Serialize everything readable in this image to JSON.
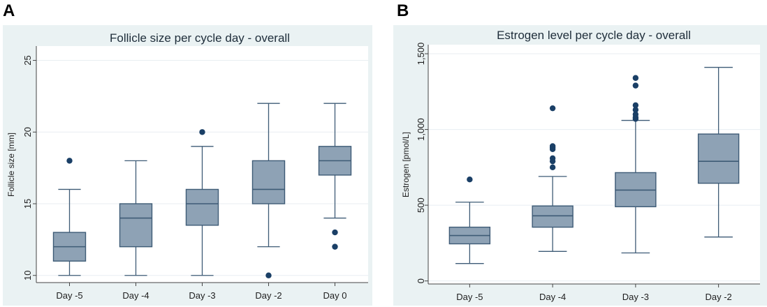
{
  "panels": [
    {
      "letter": "A"
    },
    {
      "letter": "B"
    }
  ],
  "colors": {
    "outer_bg": "#eaf2f3",
    "plot_bg": "#ffffff",
    "box_fill": "#8ea2b5",
    "box_stroke": "#3e5b76",
    "outlier": "#1a3f66",
    "grid": "#e8eef2"
  },
  "chart_data": [
    {
      "type": "box",
      "title": "Follicle size per cycle day - overall",
      "ylabel": "Follicle size [mm]",
      "xlabel": "",
      "ylim": [
        9.5,
        26
      ],
      "yticks": [
        10,
        15,
        20,
        25
      ],
      "ytick_labels": [
        "10",
        "15",
        "20",
        "25"
      ],
      "categories": [
        "Day -5",
        "Day -4",
        "Day -3",
        "Day -2",
        "Day 0"
      ],
      "boxes": [
        {
          "min": 10,
          "q1": 11,
          "median": 12,
          "q3": 13,
          "max": 16,
          "outliers": [
            18
          ]
        },
        {
          "min": 10,
          "q1": 12,
          "median": 14,
          "q3": 15,
          "max": 18,
          "outliers": []
        },
        {
          "min": 10,
          "q1": 13.5,
          "median": 15,
          "q3": 16,
          "max": 19,
          "outliers": [
            20
          ]
        },
        {
          "min": 12,
          "q1": 15,
          "median": 16,
          "q3": 18,
          "max": 22,
          "outliers": [
            10
          ]
        },
        {
          "min": 14,
          "q1": 17,
          "median": 18,
          "q3": 19,
          "max": 22,
          "outliers": [
            13,
            12
          ]
        }
      ]
    },
    {
      "type": "box",
      "title": "Estrogen level per cycle day - overall",
      "ylabel": "Estrogen [pmol/L]",
      "xlabel": "",
      "ylim": [
        -20,
        1560
      ],
      "yticks": [
        0,
        500,
        1000,
        1500
      ],
      "ytick_labels": [
        "0",
        "500",
        "1,000",
        "1,500"
      ],
      "categories": [
        "Day -5",
        "Day -4",
        "Day -3",
        "Day -2"
      ],
      "boxes": [
        {
          "min": 115,
          "q1": 245,
          "median": 300,
          "q3": 355,
          "max": 520,
          "outliers": [
            670
          ]
        },
        {
          "min": 195,
          "q1": 355,
          "median": 430,
          "q3": 495,
          "max": 690,
          "outliers": [
            750,
            790,
            810,
            870,
            880,
            890,
            1140
          ]
        },
        {
          "min": 185,
          "q1": 490,
          "median": 600,
          "q3": 715,
          "max": 1060,
          "outliers": [
            1070,
            1080,
            1100,
            1130,
            1160,
            1290,
            1340
          ]
        },
        {
          "min": 290,
          "q1": 645,
          "median": 790,
          "q3": 970,
          "max": 1410,
          "outliers": []
        }
      ]
    }
  ]
}
